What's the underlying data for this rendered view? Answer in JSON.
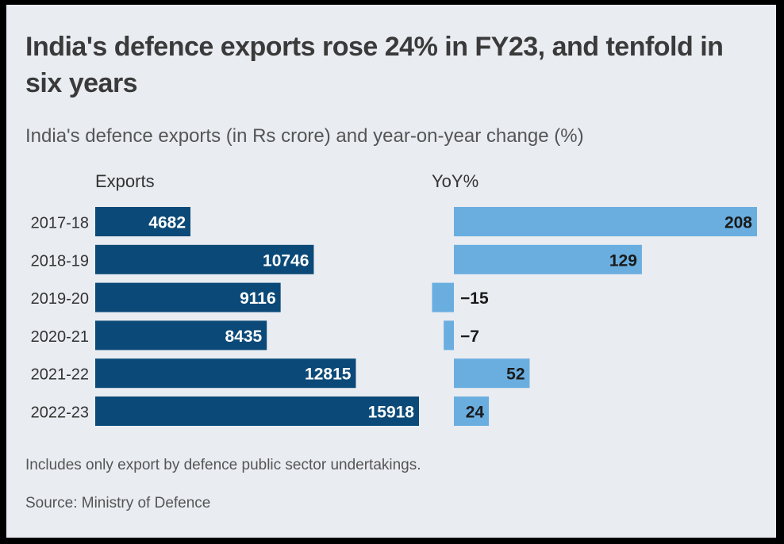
{
  "title": "India's defence exports rose 24% in FY23, and tenfold in six years",
  "subtitle": "India's defence exports (in Rs crore) and year-on-year change (%)",
  "note": "Includes only export by defence public sector undertakings.",
  "source": "Source: Ministry of Defence",
  "chart_data": [
    {
      "type": "bar",
      "orientation": "horizontal",
      "label": "Exports",
      "categories": [
        "2017-18",
        "2018-19",
        "2019-20",
        "2020-21",
        "2021-22",
        "2022-23"
      ],
      "values": [
        4682,
        10746,
        9116,
        8435,
        12815,
        15918
      ],
      "value_labels": [
        "4682",
        "10746",
        "9116",
        "8435",
        "12815",
        "15918"
      ],
      "color": "#0b4a78",
      "xlim": [
        0,
        15918
      ]
    },
    {
      "type": "bar",
      "orientation": "horizontal",
      "label": "YoY%",
      "categories": [
        "2017-18",
        "2018-19",
        "2019-20",
        "2020-21",
        "2021-22",
        "2022-23"
      ],
      "values": [
        208,
        129,
        -15,
        -7,
        52,
        24
      ],
      "value_labels": [
        "208",
        "129",
        "−15",
        "−7",
        "52",
        "24"
      ],
      "color": "#6aaee0",
      "xlim": [
        -15,
        208
      ]
    }
  ]
}
